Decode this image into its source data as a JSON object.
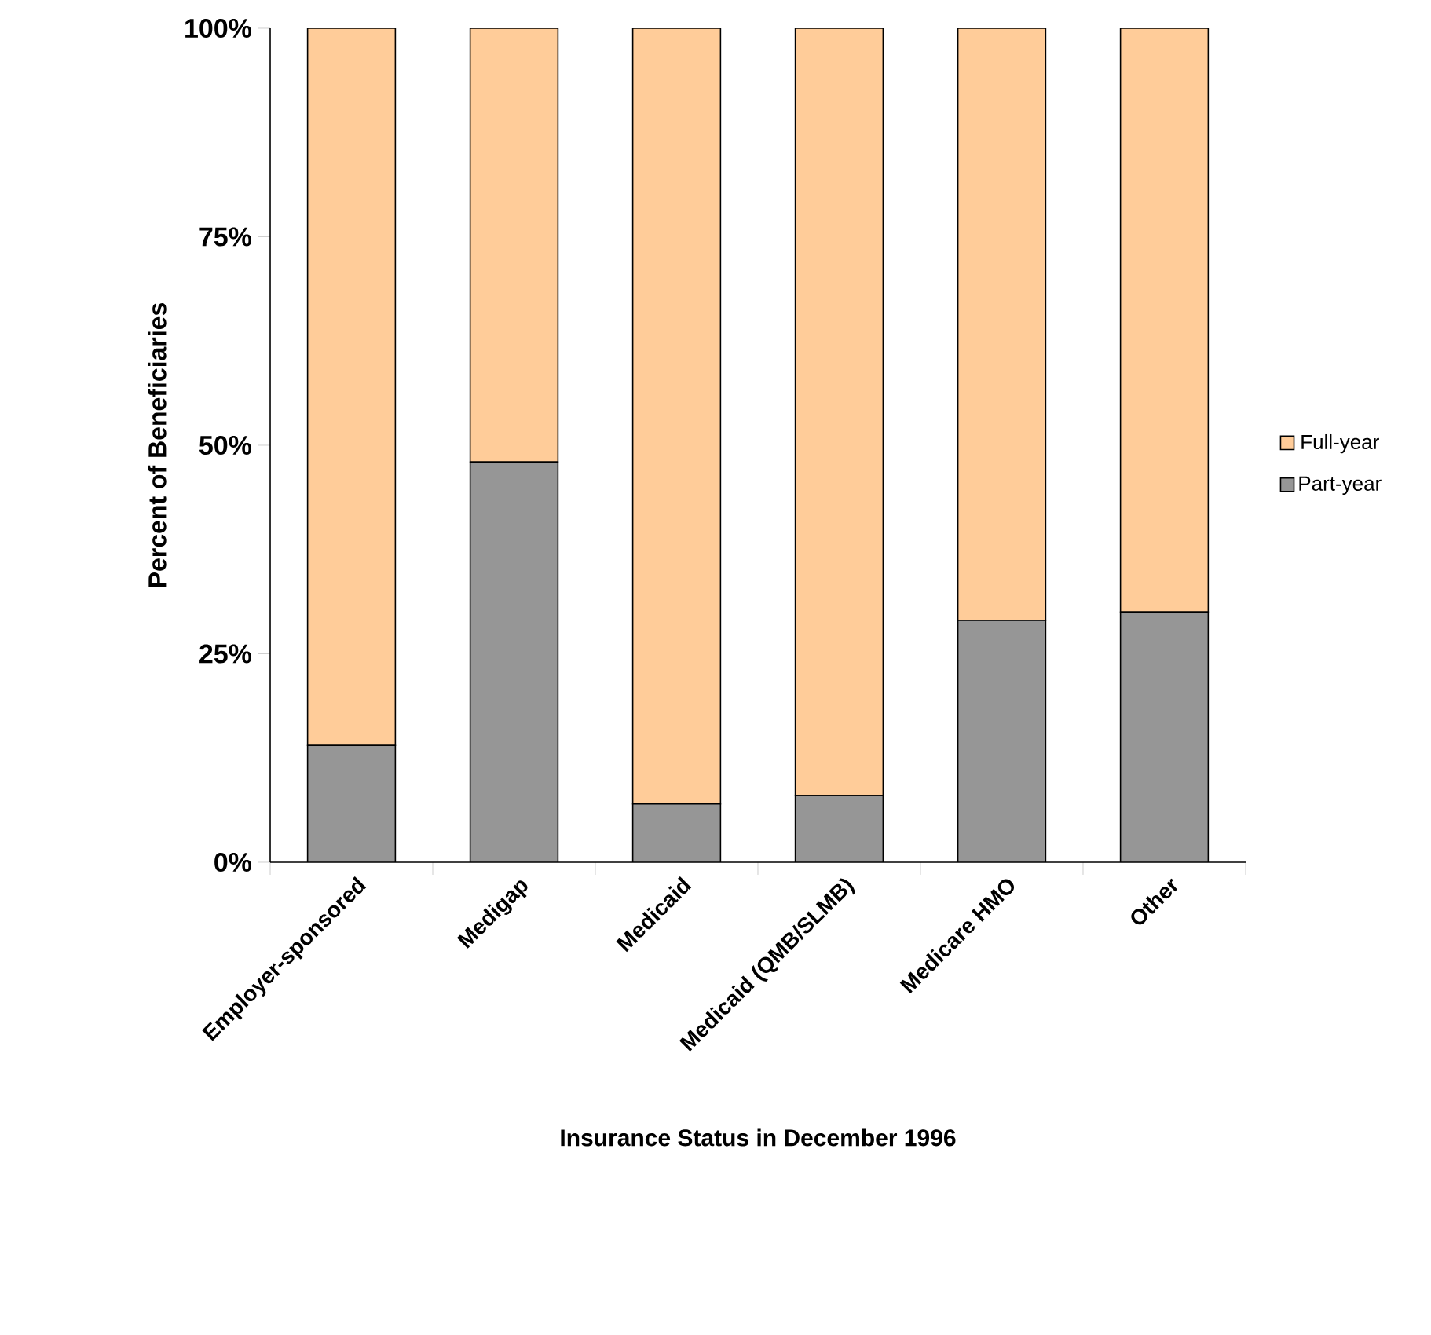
{
  "chart_data": {
    "type": "bar",
    "stacked": true,
    "xlabel": "Insurance Status in December 1996",
    "ylabel": "Percent of Beneficiaries",
    "categories": [
      "Employer-sponsored",
      "Medigap",
      "Medicaid",
      "Medicaid (QMB/SLMB)",
      "Medicare HMO",
      "Other"
    ],
    "series": [
      {
        "name": "Part-year",
        "color": "#969696",
        "values": [
          14,
          48,
          7,
          8,
          29,
          30
        ]
      },
      {
        "name": "Full-year",
        "color": "#ffcc99",
        "values": [
          86,
          52,
          93,
          92,
          71,
          70
        ]
      }
    ],
    "ylim": [
      0,
      100
    ],
    "yticks": [
      {
        "value": 0,
        "label": "0%"
      },
      {
        "value": 25,
        "label": "25%"
      },
      {
        "value": 50,
        "label": "50%"
      },
      {
        "value": 75,
        "label": "75%"
      },
      {
        "value": 100,
        "label": "100%"
      }
    ],
    "grid": false,
    "legend": "right"
  }
}
